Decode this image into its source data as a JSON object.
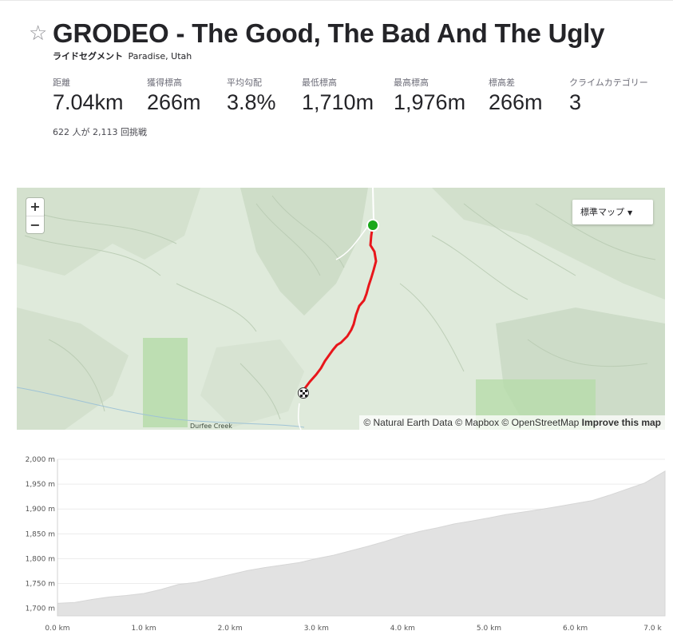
{
  "segment": {
    "title": "GRODEO - The Good, The Bad And The Ugly",
    "type_label": "ライドセグメント",
    "location": "Paradise, Utah",
    "star_icon": "star-outline-icon"
  },
  "stats": [
    {
      "label": "距離",
      "value": "7.04km"
    },
    {
      "label": "獲得標高",
      "value": "266m"
    },
    {
      "label": "平均勾配",
      "value": "3.8%"
    },
    {
      "label": "最低標高",
      "value": "1,710m"
    },
    {
      "label": "最高標高",
      "value": "1,976m"
    },
    {
      "label": "標高差",
      "value": "266m"
    },
    {
      "label": "クライムカテゴリー",
      "value": "3"
    }
  ],
  "attempts_text": "622 人が 2,113 回挑戦",
  "map": {
    "zoom_in": "+",
    "zoom_out": "−",
    "map_type_label": "標準マップ",
    "map_type_caret": "▼",
    "attribution": "© Natural Earth Data © Mapbox © OpenStreetMap",
    "improve_link": "Improve this map",
    "place_label": "Durfee Creek",
    "route_color": "#e8161b",
    "start_marker_color": "#1ba81b"
  },
  "chart_data": {
    "type": "area",
    "title": "",
    "xlabel": "",
    "ylabel": "",
    "x_ticks": [
      "0.0 km",
      "1.0 km",
      "2.0 km",
      "3.0 km",
      "4.0 km",
      "5.0 km",
      "6.0 km",
      "7.0 k"
    ],
    "y_ticks": [
      "2,000 m",
      "1,950 m",
      "1,900 m",
      "1,850 m",
      "1,800 m",
      "1,750 m",
      "1,700 m"
    ],
    "xlim": [
      0,
      7.04
    ],
    "ylim": [
      1685,
      2000
    ],
    "grid": true,
    "fill_color": "#e2e2e2",
    "series": [
      {
        "x": [
          0.0,
          0.2,
          0.4,
          0.6,
          0.8,
          1.0,
          1.2,
          1.4,
          1.6,
          1.8,
          2.0,
          2.2,
          2.4,
          2.6,
          2.8,
          3.0,
          3.2,
          3.4,
          3.6,
          3.8,
          4.0,
          4.2,
          4.4,
          4.6,
          4.8,
          5.0,
          5.2,
          5.4,
          5.6,
          5.8,
          6.0,
          6.2,
          6.4,
          6.6,
          6.8,
          7.04
        ],
        "y": [
          1710,
          1712,
          1718,
          1723,
          1726,
          1730,
          1738,
          1748,
          1752,
          1760,
          1768,
          1776,
          1782,
          1787,
          1792,
          1800,
          1807,
          1816,
          1825,
          1835,
          1846,
          1855,
          1862,
          1870,
          1876,
          1882,
          1889,
          1894,
          1899,
          1905,
          1911,
          1917,
          1928,
          1940,
          1952,
          1976
        ]
      }
    ]
  }
}
